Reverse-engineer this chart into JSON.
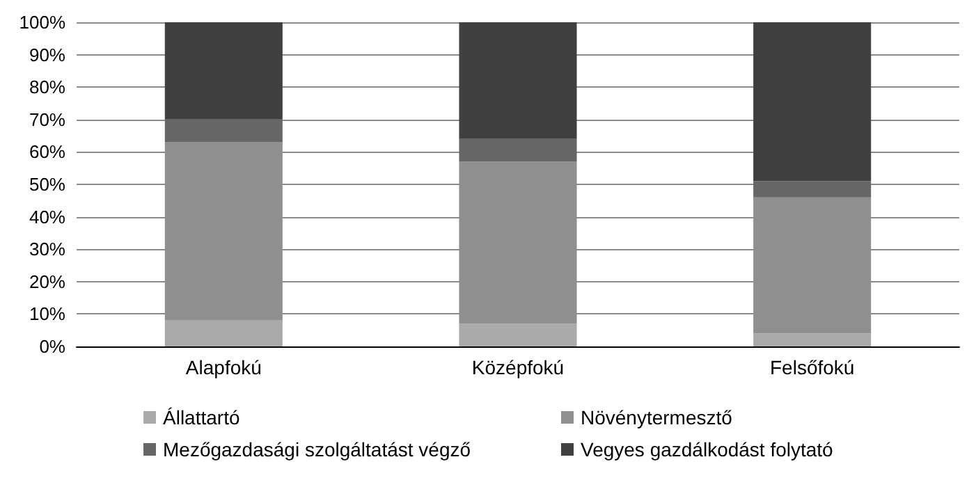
{
  "chart_data": {
    "type": "bar",
    "stacked": true,
    "categories": [
      "Alapfokú",
      "Középfokú",
      "Felsőfokú"
    ],
    "series": [
      {
        "name": "Állattartó",
        "color": "#aaaaaa",
        "values": [
          8,
          7,
          4
        ]
      },
      {
        "name": "Növénytermesztő",
        "color": "#8f8f8f",
        "values": [
          55,
          50,
          42
        ]
      },
      {
        "name": "Mezőgazdasági szolgáltatást végző",
        "color": "#666666",
        "values": [
          7,
          7,
          5
        ]
      },
      {
        "name": "Vegyes gazdálkodást folytató",
        "color": "#404040",
        "values": [
          30,
          36,
          49
        ]
      }
    ],
    "ylim": [
      0,
      100
    ],
    "yticks": [
      {
        "value": 0,
        "label": "0%"
      },
      {
        "value": 10,
        "label": "10%"
      },
      {
        "value": 20,
        "label": "20%"
      },
      {
        "value": 30,
        "label": "30%"
      },
      {
        "value": 40,
        "label": "40%"
      },
      {
        "value": 50,
        "label": "50%"
      },
      {
        "value": 60,
        "label": "60%"
      },
      {
        "value": 70,
        "label": "70%"
      },
      {
        "value": 80,
        "label": "80%"
      },
      {
        "value": 90,
        "label": "90%"
      },
      {
        "value": 100,
        "label": "100%"
      }
    ],
    "grid": "y",
    "legend": "bottom"
  }
}
